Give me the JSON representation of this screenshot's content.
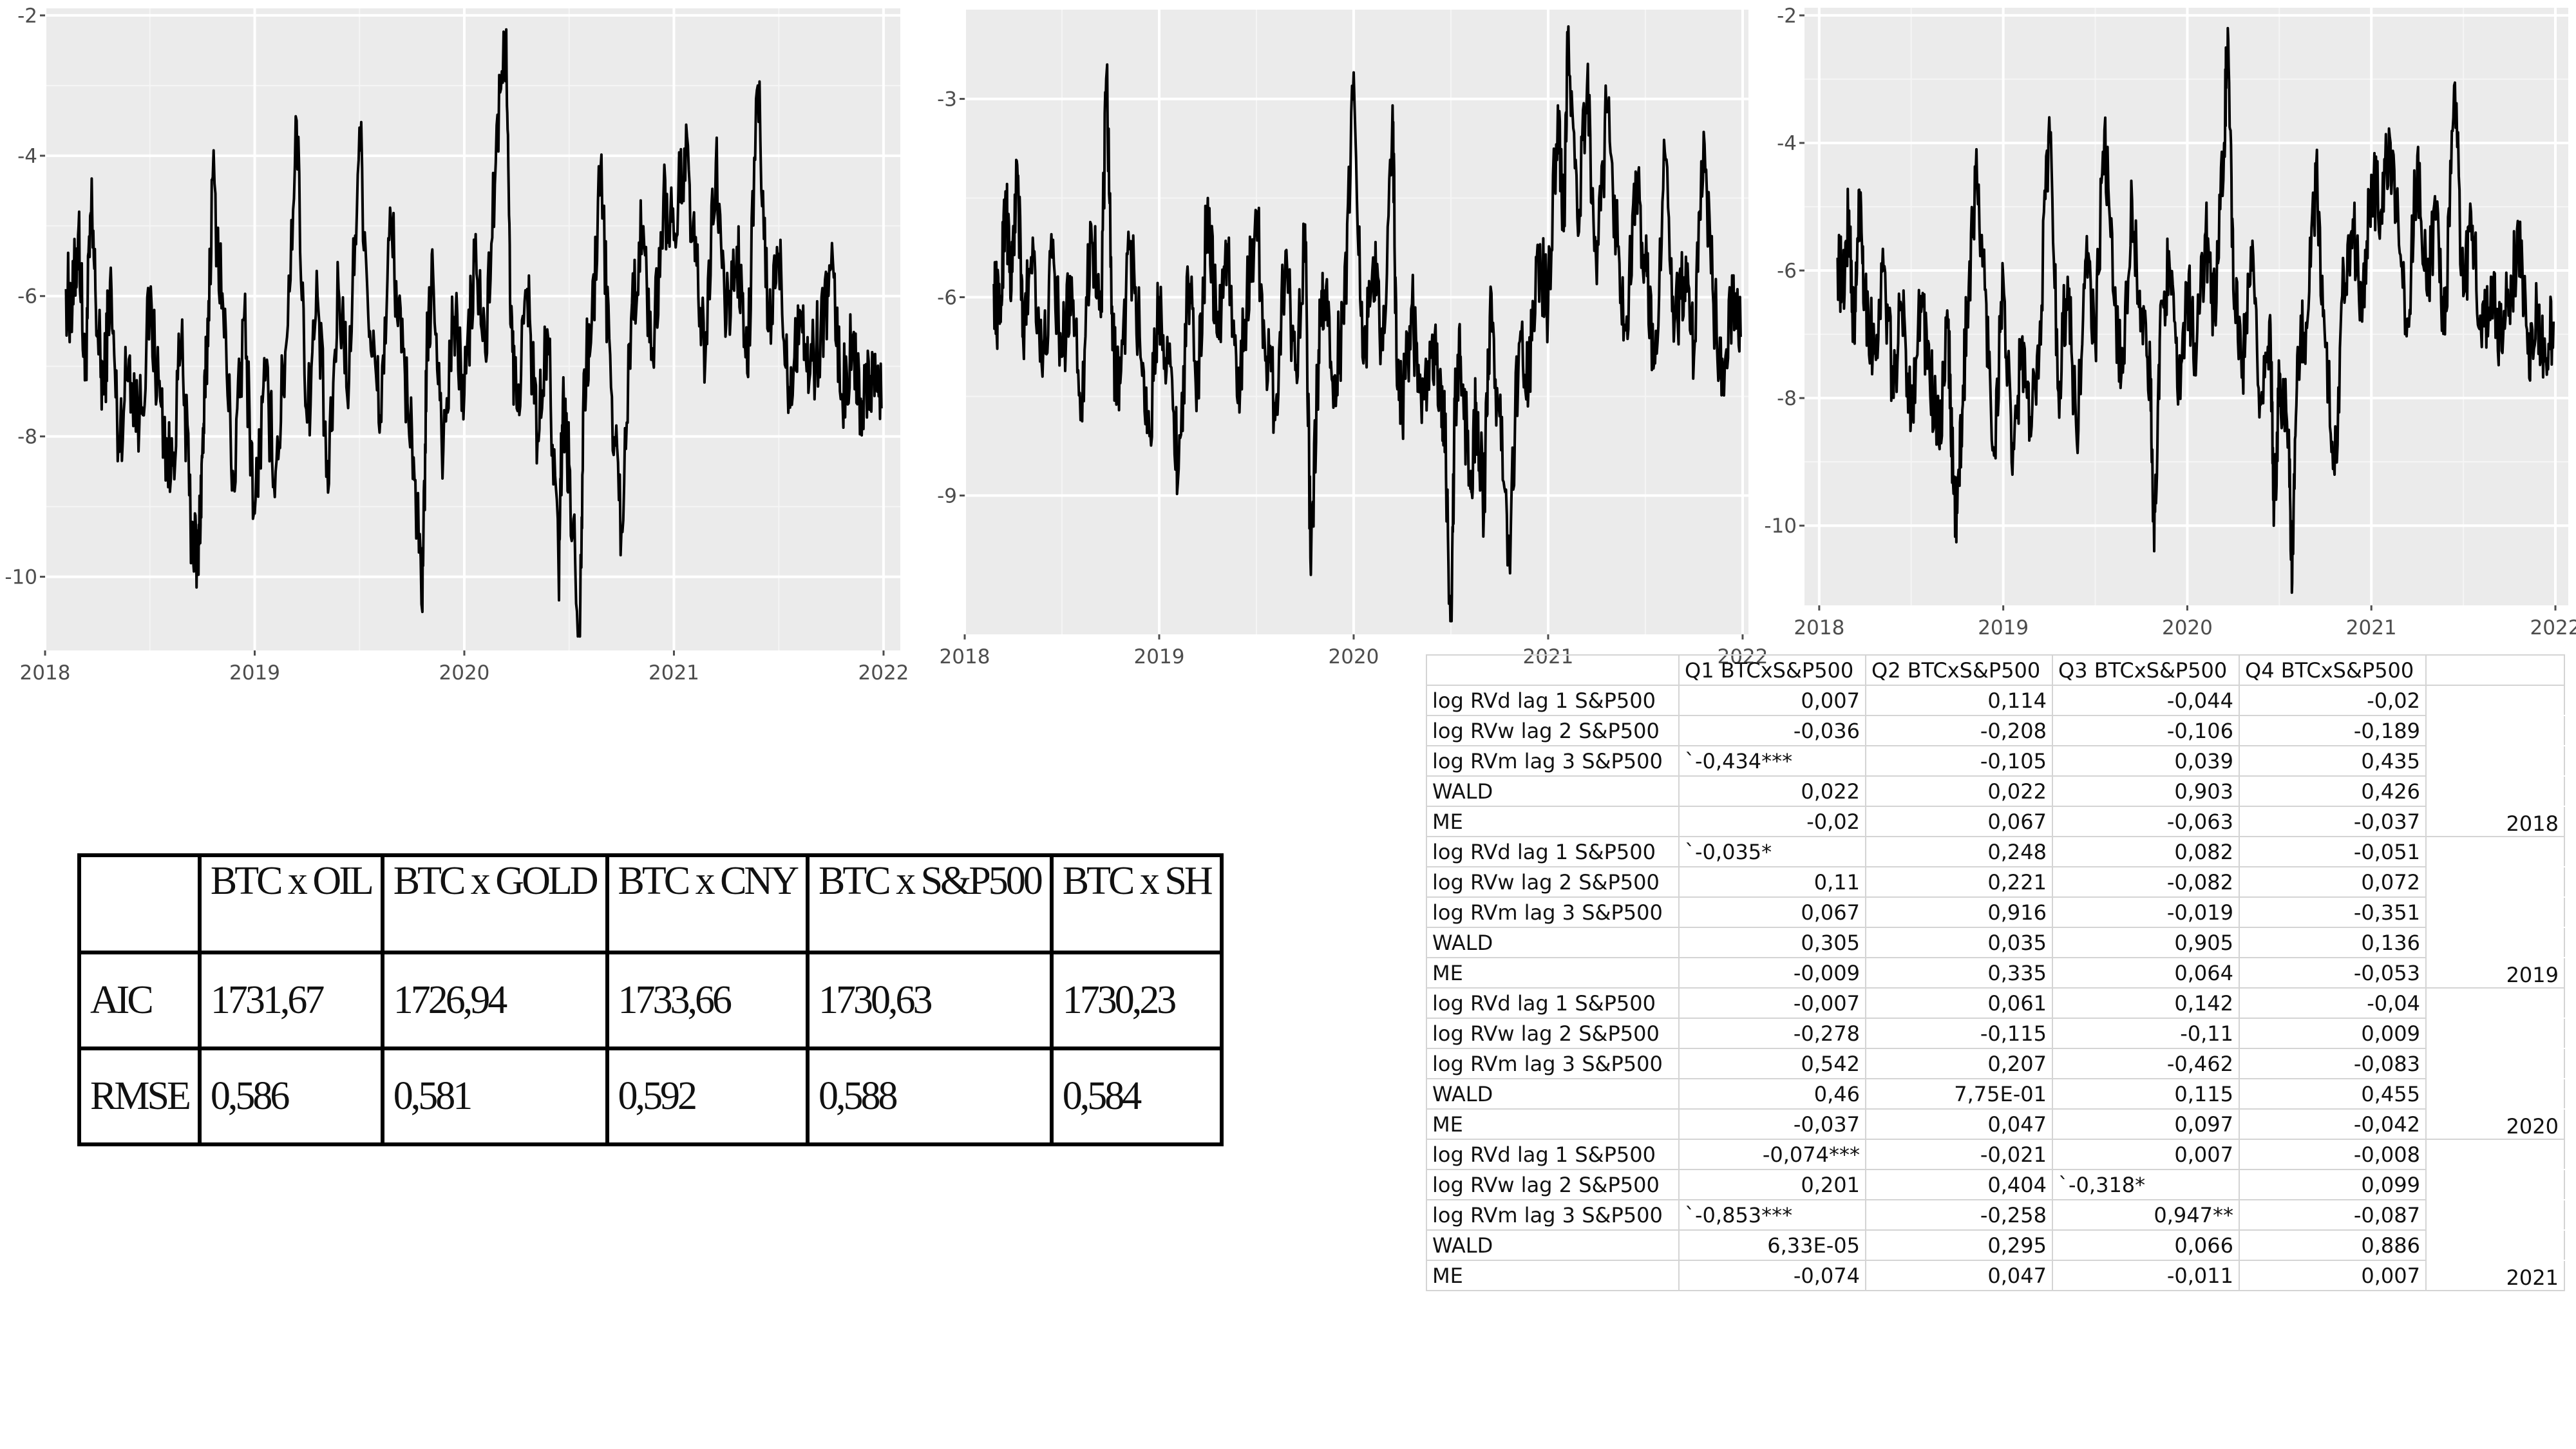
{
  "chart_data": [
    {
      "type": "line",
      "x_ticks": [
        "2018",
        "2019",
        "2020",
        "2021",
        "2022"
      ],
      "y_ticks": [
        "-2",
        "-4",
        "-6",
        "-8",
        "-10"
      ],
      "xlim": [
        2018.0,
        2022.08
      ],
      "ylim": [
        -11.05,
        -1.9
      ],
      "series": [
        {
          "x": [
            2018.1,
            2018.13,
            2018.16,
            2018.19,
            2018.22,
            2018.25,
            2018.28,
            2018.31,
            2018.35,
            2018.4,
            2018.45,
            2018.5,
            2018.55,
            2018.6,
            2018.65,
            2018.7,
            2018.73,
            2018.75,
            2018.77,
            2018.8,
            2018.85,
            2018.9,
            2018.95,
            2019.0,
            2019.05,
            2019.1,
            2019.15,
            2019.2,
            2019.25,
            2019.3,
            2019.35,
            2019.4,
            2019.45,
            2019.5,
            2019.55,
            2019.6,
            2019.65,
            2019.7,
            2019.75,
            2019.8,
            2019.82,
            2019.85,
            2019.9,
            2019.95,
            2020.0,
            2020.05,
            2020.1,
            2020.15,
            2020.2,
            2020.22,
            2020.25,
            2020.3,
            2020.35,
            2020.4,
            2020.45,
            2020.47,
            2020.5,
            2020.55,
            2020.57,
            2020.6,
            2020.65,
            2020.7,
            2020.75,
            2020.8,
            2020.85,
            2020.9,
            2020.95,
            2021.0,
            2021.05,
            2021.1,
            2021.15,
            2021.2,
            2021.25,
            2021.3,
            2021.35,
            2021.4,
            2021.45,
            2021.5,
            2021.55,
            2021.6,
            2021.65,
            2021.7,
            2021.75,
            2021.8,
            2021.85,
            2021.9,
            2021.95,
            2021.99
          ],
          "y": [
            -5.9,
            -6.2,
            -5.0,
            -7.2,
            -4.8,
            -6.5,
            -7.4,
            -5.8,
            -8.1,
            -6.9,
            -7.8,
            -6.2,
            -7.5,
            -8.6,
            -6.7,
            -9.4,
            -9.8,
            -8.3,
            -7.0,
            -4.3,
            -6.2,
            -8.7,
            -6.3,
            -9.1,
            -7.2,
            -8.5,
            -6.7,
            -3.5,
            -7.8,
            -6.0,
            -8.8,
            -5.9,
            -7.2,
            -3.6,
            -6.5,
            -7.7,
            -4.9,
            -6.8,
            -7.9,
            -10.5,
            -7.0,
            -5.6,
            -8.2,
            -6.3,
            -7.4,
            -5.5,
            -6.8,
            -4.1,
            -2.2,
            -6.4,
            -7.6,
            -5.9,
            -8.0,
            -6.6,
            -10.0,
            -7.5,
            -8.4,
            -10.9,
            -7.1,
            -6.8,
            -4.2,
            -7.3,
            -9.3,
            -6.1,
            -5.1,
            -6.9,
            -4.6,
            -5.2,
            -3.9,
            -5.5,
            -6.9,
            -4.1,
            -6.4,
            -5.3,
            -7.1,
            -3.0,
            -6.5,
            -5.4,
            -7.3,
            -6.2,
            -7.1,
            -6.5,
            -5.6,
            -7.4,
            -6.8,
            -7.5,
            -6.9,
            -7.6
          ],
          "y_extra": "none"
        }
      ]
    },
    {
      "type": "line",
      "x_ticks": [
        "2018",
        "2019",
        "2020",
        "2021",
        "2022"
      ],
      "y_ticks": [
        "-3",
        "-6",
        "-9"
      ],
      "xlim": [
        2018.0,
        2022.03
      ],
      "ylim": [
        -11.1,
        -1.65
      ],
      "series": [
        {
          "x": [
            2018.15,
            2018.18,
            2018.21,
            2018.24,
            2018.27,
            2018.3,
            2018.35,
            2018.4,
            2018.45,
            2018.5,
            2018.55,
            2018.6,
            2018.65,
            2018.7,
            2018.73,
            2018.76,
            2018.8,
            2018.85,
            2018.9,
            2018.95,
            2019.0,
            2019.05,
            2019.1,
            2019.15,
            2019.2,
            2019.25,
            2019.3,
            2019.35,
            2019.4,
            2019.45,
            2019.5,
            2019.55,
            2019.6,
            2019.65,
            2019.7,
            2019.75,
            2019.78,
            2019.82,
            2019.85,
            2019.9,
            2019.95,
            2020.0,
            2020.05,
            2020.1,
            2020.15,
            2020.2,
            2020.22,
            2020.25,
            2020.3,
            2020.35,
            2020.4,
            2020.45,
            2020.47,
            2020.5,
            2020.52,
            2020.55,
            2020.6,
            2020.63,
            2020.67,
            2020.7,
            2020.75,
            2020.8,
            2020.85,
            2020.9,
            2020.95,
            2021.0,
            2021.05,
            2021.08,
            2021.1,
            2021.15,
            2021.2,
            2021.25,
            2021.3,
            2021.35,
            2021.4,
            2021.45,
            2021.5,
            2021.55,
            2021.6,
            2021.65,
            2021.7,
            2021.75,
            2021.8,
            2021.85,
            2021.9,
            2021.95,
            2021.99
          ],
          "y": [
            -5.8,
            -6.4,
            -4.4,
            -5.9,
            -4.0,
            -6.6,
            -5.1,
            -7.2,
            -5.4,
            -6.9,
            -5.7,
            -7.6,
            -4.9,
            -6.3,
            -2.6,
            -6.8,
            -7.3,
            -5.2,
            -6.6,
            -8.1,
            -6.0,
            -7.0,
            -8.6,
            -5.8,
            -7.4,
            -4.5,
            -6.6,
            -5.2,
            -7.5,
            -6.1,
            -4.7,
            -6.9,
            -7.6,
            -5.3,
            -7.1,
            -4.9,
            -10.2,
            -6.8,
            -5.9,
            -7.2,
            -6.4,
            -2.6,
            -7.0,
            -5.4,
            -6.8,
            -3.1,
            -6.9,
            -7.7,
            -6.1,
            -7.9,
            -6.8,
            -7.4,
            -8.1,
            -11.2,
            -7.7,
            -6.9,
            -8.9,
            -7.6,
            -9.2,
            -6.3,
            -7.8,
            -9.9,
            -6.7,
            -7.3,
            -5.4,
            -6.1,
            -3.1,
            -5.0,
            -2.2,
            -4.8,
            -2.8,
            -5.8,
            -3.2,
            -4.9,
            -6.5,
            -4.1,
            -5.6,
            -7.0,
            -3.8,
            -6.4,
            -5.7,
            -6.9,
            -3.5,
            -6.1,
            -7.2,
            -5.9,
            -6.6
          ],
          "y_extra": "none"
        }
      ]
    },
    {
      "type": "line",
      "x_ticks": [
        "2018",
        "2019",
        "2020",
        "2021",
        "2022"
      ],
      "y_ticks": [
        "-2",
        "-4",
        "-6",
        "-8",
        "-10"
      ],
      "xlim": [
        2017.92,
        2022.07
      ],
      "ylim": [
        -11.25,
        -1.88
      ],
      "series": [
        {
          "x": [
            2018.1,
            2018.13,
            2018.16,
            2018.19,
            2018.22,
            2018.25,
            2018.3,
            2018.35,
            2018.4,
            2018.45,
            2018.5,
            2018.55,
            2018.6,
            2018.65,
            2018.7,
            2018.73,
            2018.75,
            2018.78,
            2018.8,
            2018.85,
            2018.9,
            2018.95,
            2019.0,
            2019.05,
            2019.1,
            2019.15,
            2019.2,
            2019.25,
            2019.3,
            2019.35,
            2019.4,
            2019.45,
            2019.5,
            2019.55,
            2019.6,
            2019.65,
            2019.7,
            2019.75,
            2019.8,
            2019.82,
            2019.85,
            2019.9,
            2019.95,
            2020.0,
            2020.05,
            2020.1,
            2020.15,
            2020.2,
            2020.22,
            2020.25,
            2020.3,
            2020.35,
            2020.4,
            2020.45,
            2020.47,
            2020.5,
            2020.55,
            2020.57,
            2020.6,
            2020.65,
            2020.7,
            2020.75,
            2020.8,
            2020.85,
            2020.9,
            2020.95,
            2021.0,
            2021.05,
            2021.1,
            2021.15,
            2021.2,
            2021.25,
            2021.3,
            2021.35,
            2021.4,
            2021.45,
            2021.5,
            2021.55,
            2021.6,
            2021.65,
            2021.7,
            2021.75,
            2021.8,
            2021.85,
            2021.9,
            2021.95,
            2021.99
          ],
          "y": [
            -5.8,
            -6.3,
            -5.1,
            -7.1,
            -4.8,
            -6.4,
            -7.3,
            -6.0,
            -7.8,
            -6.6,
            -8.2,
            -6.4,
            -7.6,
            -8.7,
            -6.9,
            -9.5,
            -9.8,
            -8.1,
            -6.8,
            -4.5,
            -6.3,
            -8.9,
            -6.1,
            -9.2,
            -7.1,
            -8.6,
            -6.8,
            -3.6,
            -7.9,
            -6.1,
            -8.7,
            -5.8,
            -7.1,
            -3.8,
            -6.4,
            -7.6,
            -4.9,
            -6.7,
            -7.8,
            -10.4,
            -7.1,
            -5.7,
            -8.1,
            -6.2,
            -7.3,
            -5.4,
            -6.7,
            -4.0,
            -2.2,
            -6.3,
            -7.5,
            -6.0,
            -8.1,
            -6.7,
            -10.0,
            -7.6,
            -8.5,
            -10.9,
            -7.2,
            -6.9,
            -4.4,
            -7.2,
            -9.2,
            -6.0,
            -5.2,
            -6.8,
            -4.5,
            -5.1,
            -3.9,
            -5.6,
            -6.8,
            -4.2,
            -6.3,
            -5.2,
            -7.0,
            -3.1,
            -6.4,
            -5.3,
            -7.2,
            -6.1,
            -7.0,
            -6.4,
            -5.5,
            -7.3,
            -6.7,
            -7.4,
            -6.8
          ],
          "y_extra": "none"
        }
      ]
    }
  ],
  "aic_table": {
    "header": [
      "",
      "BTC x OIL",
      "BTC x GOLD",
      "BTC x CNY",
      "BTC x S&P500",
      "BTC x SH"
    ],
    "rows": [
      [
        "AIC",
        "1731,67",
        "1726,94",
        "1733,66",
        "1730,63",
        "1730,23"
      ],
      [
        "RMSE",
        "0,586",
        "0,581",
        "0,592",
        "0,588",
        "0,584"
      ]
    ]
  },
  "quarter_table": {
    "header": [
      "",
      "Q1 BTCxS&P500",
      "Q2 BTCxS&P500",
      "Q3 BTCxS&P500",
      "Q4 BTCxS&P500",
      ""
    ],
    "rows": [
      [
        "log RVd lag 1 S&P500",
        "0,007",
        "0,114",
        "-0,044",
        "-0,02",
        ""
      ],
      [
        "log RVw lag 2 S&P500",
        "-0,036",
        "-0,208",
        "-0,106",
        "-0,189",
        ""
      ],
      [
        "log RVm lag 3 S&P500",
        "`-0,434***",
        "-0,105",
        "0,039",
        "0,435",
        ""
      ],
      [
        "WALD",
        "0,022",
        "0,022",
        "0,903",
        "0,426",
        ""
      ],
      [
        "ME",
        "-0,02",
        "0,067",
        "-0,063",
        "-0,037",
        "2018"
      ],
      [
        "log RVd lag 1 S&P500",
        "`-0,035*",
        "0,248",
        "0,082",
        "-0,051",
        ""
      ],
      [
        "log RVw lag 2 S&P500",
        "0,11",
        "0,221",
        "-0,082",
        "0,072",
        ""
      ],
      [
        "log RVm lag 3 S&P500",
        "0,067",
        "0,916",
        "-0,019",
        "-0,351",
        ""
      ],
      [
        "WALD",
        "0,305",
        "0,035",
        "0,905",
        "0,136",
        ""
      ],
      [
        "ME",
        "-0,009",
        "0,335",
        "0,064",
        "-0,053",
        "2019"
      ],
      [
        "log RVd lag 1 S&P500",
        "-0,007",
        "0,061",
        "0,142",
        "-0,04",
        ""
      ],
      [
        "log RVw lag 2 S&P500",
        "-0,278",
        "-0,115",
        "-0,11",
        "0,009",
        ""
      ],
      [
        "log RVm lag 3 S&P500",
        "0,542",
        "0,207",
        "-0,462",
        "-0,083",
        ""
      ],
      [
        "WALD",
        "0,46",
        "7,75E-01",
        "0,115",
        "0,455",
        ""
      ],
      [
        "ME",
        "-0,037",
        "0,047",
        "0,097",
        "-0,042",
        "2020"
      ],
      [
        "log RVd lag 1 S&P500",
        "-0,074***",
        "-0,021",
        "0,007",
        "-0,008",
        ""
      ],
      [
        "log RVw lag 2 S&P500",
        "0,201",
        "0,404",
        "`-0,318*",
        "0,099",
        ""
      ],
      [
        "log RVm lag 3 S&P500",
        "`-0,853***",
        "-0,258",
        "0,947**",
        "-0,087",
        ""
      ],
      [
        "WALD",
        "6,33E-05",
        "0,295",
        "0,066",
        "0,886",
        ""
      ],
      [
        "ME",
        "-0,074",
        "0,047",
        "-0,011",
        "0,007",
        "2021"
      ]
    ]
  }
}
